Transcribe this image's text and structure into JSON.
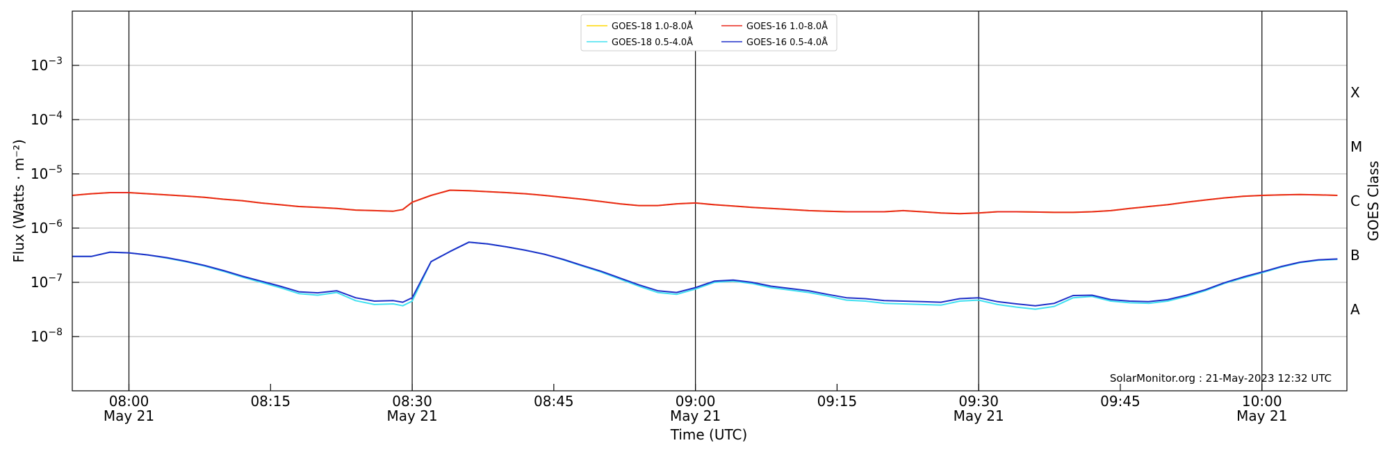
{
  "chart_data": {
    "type": "line",
    "xlabel": "Time (UTC)",
    "ylabel": "Flux (Watts · m⁻²)",
    "y2label": "GOES Class",
    "yscale": "log",
    "xlim": [
      "07:54",
      "10:09"
    ],
    "ylim": [
      1e-09,
      0.01
    ],
    "grid": "horizontal",
    "legend_position": "top-center",
    "credit": "SolarMonitor.org : 21-May-2023 12:32 UTC",
    "x_ticks": [
      {
        "time": "08:00",
        "date": "May 21"
      },
      {
        "time": "08:15",
        "date": ""
      },
      {
        "time": "08:30",
        "date": "May 21"
      },
      {
        "time": "08:45",
        "date": ""
      },
      {
        "time": "09:00",
        "date": "May 21"
      },
      {
        "time": "09:15",
        "date": ""
      },
      {
        "time": "09:30",
        "date": "May 21"
      },
      {
        "time": "09:45",
        "date": ""
      },
      {
        "time": "10:00",
        "date": "May 21"
      }
    ],
    "vertical_lines": [
      "08:00",
      "08:30",
      "09:00",
      "09:30",
      "10:00"
    ],
    "y_ticks": [
      {
        "value": 1e-08,
        "base": "10",
        "exp": "−8"
      },
      {
        "value": 1e-07,
        "base": "10",
        "exp": "−7"
      },
      {
        "value": 1e-06,
        "base": "10",
        "exp": "−6"
      },
      {
        "value": 1e-05,
        "base": "10",
        "exp": "−5"
      },
      {
        "value": 0.0001,
        "base": "10",
        "exp": "−4"
      },
      {
        "value": 0.001,
        "base": "10",
        "exp": "−3"
      }
    ],
    "goes_classes": [
      {
        "label": "A",
        "center": 3.16e-08
      },
      {
        "label": "B",
        "center": 3.16e-07
      },
      {
        "label": "C",
        "center": 3.16e-06
      },
      {
        "label": "M",
        "center": 3.16e-05
      },
      {
        "label": "X",
        "center": 0.000316
      }
    ],
    "x": [
      "07:54",
      "07:56",
      "07:58",
      "08:00",
      "08:02",
      "08:04",
      "08:06",
      "08:08",
      "08:10",
      "08:12",
      "08:14",
      "08:16",
      "08:18",
      "08:20",
      "08:22",
      "08:24",
      "08:26",
      "08:28",
      "08:29",
      "08:30",
      "08:32",
      "08:34",
      "08:36",
      "08:38",
      "08:40",
      "08:42",
      "08:44",
      "08:46",
      "08:48",
      "08:50",
      "08:52",
      "08:54",
      "08:56",
      "08:58",
      "09:00",
      "09:02",
      "09:04",
      "09:06",
      "09:08",
      "09:10",
      "09:12",
      "09:14",
      "09:16",
      "09:18",
      "09:20",
      "09:22",
      "09:24",
      "09:26",
      "09:28",
      "09:30",
      "09:32",
      "09:34",
      "09:36",
      "09:38",
      "09:40",
      "09:42",
      "09:44",
      "09:46",
      "09:48",
      "09:50",
      "09:52",
      "09:54",
      "09:56",
      "09:58",
      "10:00",
      "10:02",
      "10:04",
      "10:06",
      "10:08"
    ],
    "series": [
      {
        "name": "GOES-18 1.0-8.0Å",
        "color": "#ffd700",
        "values": [
          4e-06,
          4.3e-06,
          4.5e-06,
          4.5e-06,
          4.3e-06,
          4.1e-06,
          3.9e-06,
          3.7e-06,
          3.4e-06,
          3.2e-06,
          2.9e-06,
          2.7e-06,
          2.5e-06,
          2.4e-06,
          2.3e-06,
          2.15e-06,
          2.1e-06,
          2.05e-06,
          2.2e-06,
          3e-06,
          4e-06,
          5e-06,
          4.9e-06,
          4.7e-06,
          4.5e-06,
          4.3e-06,
          4e-06,
          3.7e-06,
          3.4e-06,
          3.1e-06,
          2.8e-06,
          2.6e-06,
          2.6e-06,
          2.8e-06,
          2.9e-06,
          2.7e-06,
          2.55e-06,
          2.4e-06,
          2.3e-06,
          2.2e-06,
          2.1e-06,
          2.05e-06,
          2e-06,
          2e-06,
          2e-06,
          2.1e-06,
          2e-06,
          1.9e-06,
          1.85e-06,
          1.9e-06,
          2e-06,
          2e-06,
          1.98e-06,
          1.95e-06,
          1.95e-06,
          2e-06,
          2.1e-06,
          2.3e-06,
          2.5e-06,
          2.7e-06,
          3e-06,
          3.3e-06,
          3.6e-06,
          3.85e-06,
          4e-06,
          4.1e-06,
          4.15e-06,
          4.1e-06,
          4e-06
        ]
      },
      {
        "name": "GOES-18 0.5-4.0Å",
        "color": "#40e0f0",
        "values": [
          3e-07,
          3e-07,
          3.6e-07,
          3.5e-07,
          3.2e-07,
          2.8e-07,
          2.4e-07,
          2e-07,
          1.6e-07,
          1.25e-07,
          1e-07,
          8e-08,
          6.2e-08,
          5.8e-08,
          6.5e-08,
          4.6e-08,
          3.9e-08,
          4e-08,
          3.7e-08,
          4.5e-08,
          2.4e-07,
          3.7e-07,
          5.5e-07,
          5.1e-07,
          4.5e-07,
          3.9e-07,
          3.3e-07,
          2.6e-07,
          2e-07,
          1.55e-07,
          1.15e-07,
          8.5e-08,
          6.5e-08,
          6e-08,
          7.5e-08,
          1e-07,
          1.05e-07,
          9.5e-08,
          8e-08,
          7.2e-08,
          6.5e-08,
          5.6e-08,
          4.7e-08,
          4.5e-08,
          4.1e-08,
          4e-08,
          3.9e-08,
          3.8e-08,
          4.5e-08,
          4.7e-08,
          3.9e-08,
          3.5e-08,
          3.2e-08,
          3.6e-08,
          5.2e-08,
          5.5e-08,
          4.5e-08,
          4.2e-08,
          4.1e-08,
          4.5e-08,
          5.5e-08,
          7e-08,
          9.5e-08,
          1.2e-07,
          1.5e-07,
          1.9e-07,
          2.3e-07,
          2.55e-07,
          2.65e-07
        ]
      },
      {
        "name": "GOES-16 1.0-8.0Å",
        "color": "#e8261a",
        "values": [
          4e-06,
          4.3e-06,
          4.5e-06,
          4.5e-06,
          4.3e-06,
          4.1e-06,
          3.9e-06,
          3.7e-06,
          3.4e-06,
          3.2e-06,
          2.9e-06,
          2.7e-06,
          2.5e-06,
          2.4e-06,
          2.3e-06,
          2.15e-06,
          2.1e-06,
          2.05e-06,
          2.2e-06,
          3e-06,
          4e-06,
          5e-06,
          4.9e-06,
          4.7e-06,
          4.5e-06,
          4.3e-06,
          4e-06,
          3.7e-06,
          3.4e-06,
          3.1e-06,
          2.8e-06,
          2.6e-06,
          2.6e-06,
          2.8e-06,
          2.9e-06,
          2.7e-06,
          2.55e-06,
          2.4e-06,
          2.3e-06,
          2.2e-06,
          2.1e-06,
          2.05e-06,
          2e-06,
          2e-06,
          2e-06,
          2.1e-06,
          2e-06,
          1.9e-06,
          1.85e-06,
          1.9e-06,
          2e-06,
          2e-06,
          1.98e-06,
          1.95e-06,
          1.95e-06,
          2e-06,
          2.1e-06,
          2.3e-06,
          2.5e-06,
          2.7e-06,
          3e-06,
          3.3e-06,
          3.6e-06,
          3.85e-06,
          4e-06,
          4.1e-06,
          4.15e-06,
          4.1e-06,
          4e-06
        ]
      },
      {
        "name": "GOES-16 0.5-4.0Å",
        "color": "#1f2fc8",
        "values": [
          3e-07,
          3e-07,
          3.6e-07,
          3.5e-07,
          3.2e-07,
          2.85e-07,
          2.45e-07,
          2.05e-07,
          1.65e-07,
          1.3e-07,
          1.05e-07,
          8.5e-08,
          6.7e-08,
          6.4e-08,
          7e-08,
          5.2e-08,
          4.5e-08,
          4.6e-08,
          4.3e-08,
          5.2e-08,
          2.4e-07,
          3.7e-07,
          5.5e-07,
          5.1e-07,
          4.5e-07,
          3.9e-07,
          3.3e-07,
          2.65e-07,
          2.05e-07,
          1.6e-07,
          1.2e-07,
          9e-08,
          7e-08,
          6.5e-08,
          8e-08,
          1.05e-07,
          1.1e-07,
          1e-07,
          8.5e-08,
          7.7e-08,
          7e-08,
          6e-08,
          5.2e-08,
          5e-08,
          4.6e-08,
          4.5e-08,
          4.4e-08,
          4.3e-08,
          5e-08,
          5.2e-08,
          4.4e-08,
          4e-08,
          3.7e-08,
          4.1e-08,
          5.7e-08,
          5.8e-08,
          4.8e-08,
          4.5e-08,
          4.4e-08,
          4.8e-08,
          5.8e-08,
          7.3e-08,
          9.8e-08,
          1.25e-07,
          1.55e-07,
          1.95e-07,
          2.35e-07,
          2.6e-07,
          2.7e-07
        ]
      }
    ]
  }
}
